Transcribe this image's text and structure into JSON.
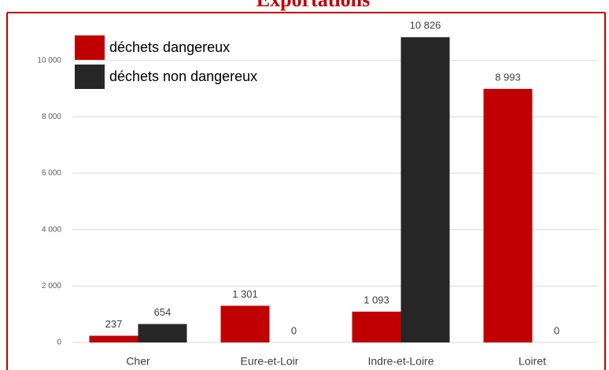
{
  "chart_data": {
    "type": "bar",
    "title": "Exportations",
    "categories": [
      "Cher",
      "Eure-et-Loir",
      "Indre-et-Loire",
      "Loiret"
    ],
    "series": [
      {
        "name": "déchets dangereux",
        "color": "#c00000",
        "values": [
          237,
          1301,
          1093,
          8993
        ],
        "value_labels": [
          "237",
          "1 301",
          "1 093",
          "8 993"
        ]
      },
      {
        "name": "déchets non dangereux",
        "color": "#262626",
        "values": [
          654,
          0,
          10826,
          0
        ],
        "value_labels": [
          "654",
          "0",
          "10 826",
          "0"
        ]
      }
    ],
    "ylim": [
      0,
      11000
    ],
    "yticks": [
      0,
      {
        "value": 2000,
        "label": "2 000"
      },
      {
        "value": 4000,
        "label": "4 000"
      },
      {
        "value": 6000,
        "label": "6 000"
      },
      {
        "value": 8000,
        "label": "8 000"
      },
      {
        "value": 10000,
        "label": "10 000"
      }
    ],
    "grid": true,
    "legend": "upper left"
  }
}
